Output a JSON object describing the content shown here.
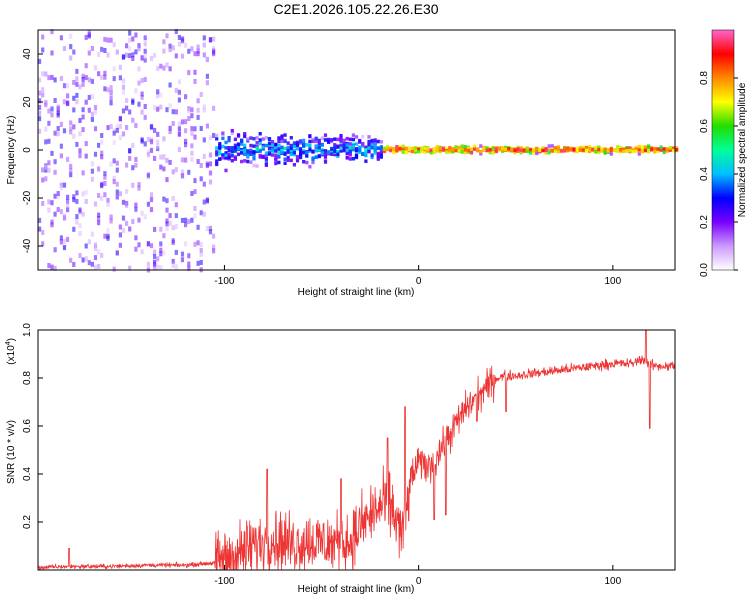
{
  "title": "C2E1.2026.105.22.26.E30",
  "chart_data": [
    {
      "type": "heatmap",
      "title": "C2E1.2026.105.22.26.E30",
      "xlabel": "Height of straight line (km)",
      "ylabel": "Frequency (Hz)",
      "xlim": [
        -196,
        132
      ],
      "ylim": [
        -50,
        50
      ],
      "xticks": [
        -100,
        0,
        100
      ],
      "xtick_labels": [
        "-100",
        "0",
        "100"
      ],
      "yticks": [
        40,
        20,
        0,
        -20,
        -40
      ],
      "ytick_labels": [
        "40",
        "20",
        "0",
        "-20",
        "-40"
      ],
      "colorbar": {
        "label": "Normalized spectral amplitude",
        "range": [
          0,
          1
        ],
        "ticks": [
          0.0,
          0.2,
          0.4,
          0.6,
          0.8
        ],
        "tick_labels": [
          "0.0",
          "0.2",
          "0.4",
          "0.6",
          "0.8"
        ],
        "colors": [
          "#ffffff",
          "#cc99ff",
          "#7700ff",
          "#0000ff",
          "#00bfff",
          "#00ff99",
          "#22dd00",
          "#ffff00",
          "#ff8800",
          "#ff0000",
          "#ff66cc"
        ]
      },
      "regions": [
        {
          "x_range": [
            -196,
            -105
          ],
          "description": "broadband noise",
          "freq_spread": 50,
          "amplitude": 0.12
        },
        {
          "x_range": [
            -105,
            -20
          ],
          "description": "low-frequency band",
          "freq_spread": 8,
          "amplitude": 0.35
        },
        {
          "x_range": [
            -20,
            132
          ],
          "description": "narrow 0 Hz line",
          "freq_spread": 2,
          "amplitude": 0.85
        }
      ]
    },
    {
      "type": "line",
      "xlabel": "Height of straight line (km)",
      "ylabel": "SNR (10 * v/v)",
      "scale_label": "(x10^4)",
      "scale_text": "(x10",
      "scale_exp": "4",
      "scale_close": ")",
      "xlim": [
        -196,
        132
      ],
      "ylim": [
        0,
        1.0
      ],
      "xticks": [
        -100,
        0,
        100
      ],
      "xtick_labels": [
        "-100",
        "0",
        "100"
      ],
      "yticks": [
        1.0,
        0.8,
        0.6,
        0.4,
        0.2
      ],
      "ytick_labels": [
        "1.0",
        "0.8",
        "0.6",
        "0.4",
        "0.2"
      ],
      "color": "#ee3333",
      "series": [
        {
          "name": "SNR",
          "x": [
            -196,
            -180,
            -160,
            -140,
            -120,
            -105,
            -95,
            -85,
            -75,
            -65,
            -55,
            -45,
            -35,
            -28,
            -22,
            -15,
            -8,
            -4,
            0,
            5,
            10,
            15,
            20,
            25,
            30,
            35,
            40,
            45,
            50,
            60,
            70,
            80,
            90,
            100,
            110,
            115,
            118,
            122,
            132
          ],
          "y": [
            0.01,
            0.015,
            0.015,
            0.02,
            0.02,
            0.03,
            0.06,
            0.1,
            0.13,
            0.11,
            0.12,
            0.11,
            0.12,
            0.2,
            0.25,
            0.28,
            0.14,
            0.38,
            0.45,
            0.43,
            0.48,
            0.55,
            0.62,
            0.68,
            0.72,
            0.76,
            0.8,
            0.81,
            0.81,
            0.82,
            0.83,
            0.84,
            0.85,
            0.86,
            0.86,
            0.88,
            0.86,
            0.85,
            0.85
          ]
        }
      ],
      "spikes": [
        {
          "x": -180,
          "y": 0.09
        },
        {
          "x": -78,
          "y": 0.42
        },
        {
          "x": -40,
          "y": 0.38
        },
        {
          "x": -16,
          "y": 0.55
        },
        {
          "x": -7,
          "y": 0.68
        },
        {
          "x": 8,
          "y": 0.21
        },
        {
          "x": 14,
          "y": 0.23
        },
        {
          "x": 30,
          "y": 0.62
        },
        {
          "x": 45,
          "y": 0.66
        },
        {
          "x": 117,
          "y": 1.0
        },
        {
          "x": 119,
          "y": 0.59
        }
      ]
    }
  ]
}
